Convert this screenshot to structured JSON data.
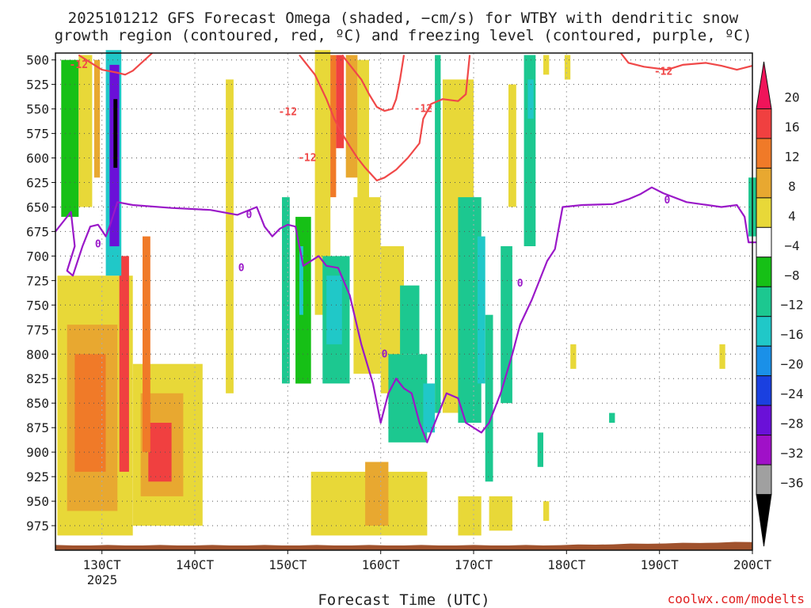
{
  "chart_data": {
    "type": "heatmap",
    "title_line1": "2025101212 GFS Forecast Omega (shaded, −cm/s) for WTBY with dendritic snow",
    "title_line2": "growth region (contoured, red, ºC) and freezing level (contoured, purple, ºC)",
    "xlabel": "Forecast Time (UTC)",
    "xlabel_year": "2025",
    "credit": "coolwx.com/modelts",
    "x_ticks": [
      "130CT",
      "140CT",
      "150CT",
      "160CT",
      "170CT",
      "180CT",
      "190CT",
      "200CT"
    ],
    "x_tick_hours": [
      12,
      36,
      60,
      84,
      108,
      132,
      156,
      180
    ],
    "x_range_hours": [
      0,
      180
    ],
    "y_ticks": [
      500,
      525,
      550,
      575,
      600,
      625,
      650,
      675,
      700,
      725,
      750,
      775,
      800,
      825,
      850,
      875,
      900,
      925,
      950,
      975
    ],
    "y_range_hpa": [
      493,
      1000
    ],
    "grid": true,
    "colorbar": {
      "levels": [
        "20",
        "16",
        "12",
        "8",
        "4",
        "−4",
        "−8",
        "−12",
        "−16",
        "−20",
        "−24",
        "−28",
        "−32",
        "−36"
      ],
      "colors": [
        "#f0145a",
        "#f04040",
        "#f07a28",
        "#e8a830",
        "#e8d838",
        "#ffffff",
        "#16c016",
        "#1cc890",
        "#20c8c8",
        "#1a90e8",
        "#1a40e0",
        "#6a10d8",
        "#a010c8",
        "#a0a0a0",
        "#000000"
      ]
    },
    "omega_regions": [
      {
        "t": [
          0.5,
          20
        ],
        "p": [
          720,
          985
        ],
        "value": 6
      },
      {
        "t": [
          3,
          16
        ],
        "p": [
          770,
          960
        ],
        "value": 10
      },
      {
        "t": [
          5,
          13
        ],
        "p": [
          800,
          920
        ],
        "value": 14
      },
      {
        "t": [
          20,
          38
        ],
        "p": [
          810,
          975
        ],
        "value": 6
      },
      {
        "t": [
          22,
          33
        ],
        "p": [
          840,
          945
        ],
        "value": 11
      },
      {
        "t": [
          24,
          30
        ],
        "p": [
          870,
          930
        ],
        "value": 18
      },
      {
        "t": [
          16.5,
          19
        ],
        "p": [
          700,
          920
        ],
        "value": 19
      },
      {
        "t": [
          22.5,
          24.5
        ],
        "p": [
          680,
          900
        ],
        "value": 12
      },
      {
        "t": [
          13,
          17
        ],
        "p": [
          490,
          720
        ],
        "value": -14
      },
      {
        "t": [
          14,
          16.5
        ],
        "p": [
          505,
          690
        ],
        "value": -24
      },
      {
        "t": [
          15,
          16
        ],
        "p": [
          540,
          610
        ],
        "value": -36
      },
      {
        "t": [
          1.5,
          6
        ],
        "p": [
          500,
          660
        ],
        "value": -6
      },
      {
        "t": [
          6,
          9.5
        ],
        "p": [
          495,
          650
        ],
        "value": 6
      },
      {
        "t": [
          10,
          11.5
        ],
        "p": [
          500,
          620
        ],
        "value": 8
      },
      {
        "t": [
          44,
          46
        ],
        "p": [
          520,
          840
        ],
        "value": 6
      },
      {
        "t": [
          58.5,
          60.5
        ],
        "p": [
          640,
          830
        ],
        "value": -8
      },
      {
        "t": [
          62,
          66
        ],
        "p": [
          660,
          830
        ],
        "value": -6
      },
      {
        "t": [
          63,
          64
        ],
        "p": [
          690,
          760
        ],
        "value": -12
      },
      {
        "t": [
          67,
          71
        ],
        "p": [
          490,
          760
        ],
        "value": 6
      },
      {
        "t": [
          71,
          72.5
        ],
        "p": [
          495,
          640
        ],
        "value": 12
      },
      {
        "t": [
          72.5,
          74.5
        ],
        "p": [
          495,
          590
        ],
        "value": 18
      },
      {
        "t": [
          75,
          78
        ],
        "p": [
          495,
          620
        ],
        "value": 8
      },
      {
        "t": [
          69,
          76
        ],
        "p": [
          700,
          830
        ],
        "value": -8
      },
      {
        "t": [
          70,
          74
        ],
        "p": [
          720,
          790
        ],
        "value": -12
      },
      {
        "t": [
          78,
          81
        ],
        "p": [
          500,
          680
        ],
        "value": 6
      },
      {
        "t": [
          84,
          90
        ],
        "p": [
          690,
          840
        ],
        "value": 6
      },
      {
        "t": [
          86,
          96
        ],
        "p": [
          800,
          890
        ],
        "value": -8
      },
      {
        "t": [
          89,
          94
        ],
        "p": [
          730,
          800
        ],
        "value": -10
      },
      {
        "t": [
          95,
          98
        ],
        "p": [
          830,
          880
        ],
        "value": -12
      },
      {
        "t": [
          98,
          99.5
        ],
        "p": [
          495,
          860
        ],
        "value": -10
      },
      {
        "t": [
          100,
          108
        ],
        "p": [
          520,
          860
        ],
        "value": 6
      },
      {
        "t": [
          104,
          110
        ],
        "p": [
          640,
          870
        ],
        "value": -8
      },
      {
        "t": [
          109,
          111
        ],
        "p": [
          680,
          830
        ],
        "value": -12
      },
      {
        "t": [
          111,
          113
        ],
        "p": [
          760,
          930
        ],
        "value": -8
      },
      {
        "t": [
          115,
          118
        ],
        "p": [
          690,
          850
        ],
        "value": -8
      },
      {
        "t": [
          117,
          119
        ],
        "p": [
          525,
          650
        ],
        "value": 6
      },
      {
        "t": [
          121,
          124
        ],
        "p": [
          495,
          690
        ],
        "value": -8
      },
      {
        "t": [
          122,
          123.5
        ],
        "p": [
          520,
          560
        ],
        "value": -12
      },
      {
        "t": [
          124.5,
          126
        ],
        "p": [
          880,
          915
        ],
        "value": -8
      },
      {
        "t": [
          77,
          84
        ],
        "p": [
          640,
          820
        ],
        "value": 6
      },
      {
        "t": [
          66,
          96
        ],
        "p": [
          920,
          985
        ],
        "value": 5
      },
      {
        "t": [
          80,
          86
        ],
        "p": [
          910,
          975
        ],
        "value": 8
      },
      {
        "t": [
          104,
          110
        ],
        "p": [
          945,
          985
        ],
        "value": 5
      },
      {
        "t": [
          112,
          118
        ],
        "p": [
          945,
          980
        ],
        "value": 5
      },
      {
        "t": [
          126,
          127.5
        ],
        "p": [
          950,
          970
        ],
        "value": 5
      },
      {
        "t": [
          133,
          134.5
        ],
        "p": [
          790,
          815
        ],
        "value": 5
      },
      {
        "t": [
          143,
          144.5
        ],
        "p": [
          860,
          870
        ],
        "value": -8
      },
      {
        "t": [
          171.5,
          173
        ],
        "p": [
          790,
          815
        ],
        "value": 5
      },
      {
        "t": [
          179,
          181
        ],
        "p": [
          620,
          680
        ],
        "value": -8
      },
      {
        "t": [
          126,
          127.5
        ],
        "p": [
          495,
          515
        ],
        "value": 6
      },
      {
        "t": [
          131.5,
          133
        ],
        "p": [
          495,
          520
        ],
        "value": 6
      }
    ],
    "contours": [
      {
        "name": "dendritic-minus12",
        "label": "-12",
        "color": "#f04848",
        "label_at": [
          [
            6,
            505
          ],
          [
            65,
            600
          ],
          [
            60,
            553
          ],
          [
            95,
            550
          ],
          [
            157,
            512
          ]
        ],
        "points": [
          [
            6,
            495
          ],
          [
            10,
            505
          ],
          [
            12,
            510
          ],
          [
            16,
            513
          ],
          [
            18,
            515
          ],
          [
            20,
            511
          ],
          [
            25,
            493
          ]
        ]
      },
      {
        "name": "dendritic-minus12-b",
        "label": "",
        "color": "#f04848",
        "label_at": [],
        "points": [
          [
            63,
            495
          ],
          [
            65,
            505
          ],
          [
            67,
            515
          ],
          [
            70,
            540
          ],
          [
            72,
            560
          ],
          [
            74,
            575
          ],
          [
            76,
            588
          ],
          [
            78,
            600
          ],
          [
            80,
            610
          ],
          [
            83,
            623
          ],
          [
            85,
            620
          ],
          [
            88,
            612
          ],
          [
            91,
            600
          ],
          [
            94,
            585
          ],
          [
            95,
            560
          ],
          [
            97,
            545
          ],
          [
            100,
            540
          ],
          [
            104,
            542
          ],
          [
            106,
            535
          ],
          [
            107,
            495
          ]
        ]
      },
      {
        "name": "dendritic-minus12-c",
        "label": "",
        "color": "#f04848",
        "label_at": [],
        "points": [
          [
            74,
            495
          ],
          [
            76,
            505
          ],
          [
            79,
            520
          ],
          [
            81,
            535
          ],
          [
            83,
            548
          ],
          [
            85,
            552
          ],
          [
            87,
            550
          ],
          [
            88,
            540
          ],
          [
            89,
            520
          ],
          [
            90,
            495
          ]
        ]
      },
      {
        "name": "dendritic-minus12-d",
        "label": "",
        "color": "#f04848",
        "label_at": [],
        "points": [
          [
            146,
            493
          ],
          [
            148,
            503
          ],
          [
            152,
            507
          ],
          [
            158,
            510
          ],
          [
            162,
            505
          ],
          [
            168,
            503
          ],
          [
            172,
            506
          ],
          [
            176,
            510
          ],
          [
            180,
            506
          ]
        ]
      },
      {
        "name": "freezing-level-0",
        "label": "0",
        "color": "#9a18c8",
        "label_at": [
          [
            11,
            688
          ],
          [
            50,
            658
          ],
          [
            48,
            712
          ],
          [
            85,
            800
          ],
          [
            120,
            728
          ],
          [
            158,
            643
          ]
        ],
        "points": [
          [
            0,
            675
          ],
          [
            2,
            665
          ],
          [
            4,
            655
          ],
          [
            5,
            690
          ],
          [
            3,
            715
          ],
          [
            4.5,
            720
          ],
          [
            7,
            690
          ],
          [
            9,
            670
          ],
          [
            11,
            668
          ],
          [
            13,
            680
          ],
          [
            14,
            670
          ],
          [
            16,
            645
          ],
          [
            20,
            648
          ],
          [
            30,
            651
          ],
          [
            40,
            653
          ],
          [
            47,
            658
          ],
          [
            52,
            650
          ],
          [
            54,
            670
          ],
          [
            56,
            680
          ],
          [
            58,
            672
          ],
          [
            60,
            668
          ],
          [
            62,
            670
          ],
          [
            64,
            710
          ],
          [
            68,
            700
          ],
          [
            70,
            710
          ],
          [
            73,
            712
          ],
          [
            76,
            740
          ],
          [
            79,
            790
          ],
          [
            82,
            830
          ],
          [
            84,
            870
          ],
          [
            86,
            840
          ],
          [
            88,
            825
          ],
          [
            90,
            835
          ],
          [
            92,
            840
          ],
          [
            94,
            870
          ],
          [
            96,
            890
          ],
          [
            99,
            860
          ],
          [
            101,
            840
          ],
          [
            104,
            845
          ],
          [
            106,
            870
          ],
          [
            110,
            880
          ],
          [
            112,
            870
          ],
          [
            115,
            840
          ],
          [
            118,
            800
          ],
          [
            120,
            770
          ],
          [
            123,
            745
          ],
          [
            127,
            705
          ],
          [
            129,
            693
          ],
          [
            131,
            650
          ],
          [
            136,
            648
          ],
          [
            144,
            647
          ],
          [
            148,
            642
          ],
          [
            151,
            637
          ],
          [
            154,
            630
          ],
          [
            157,
            636
          ],
          [
            163,
            645
          ],
          [
            172,
            650
          ],
          [
            176,
            648
          ],
          [
            178,
            660
          ],
          [
            179,
            686
          ],
          [
            181,
            686
          ]
        ]
      }
    ]
  }
}
